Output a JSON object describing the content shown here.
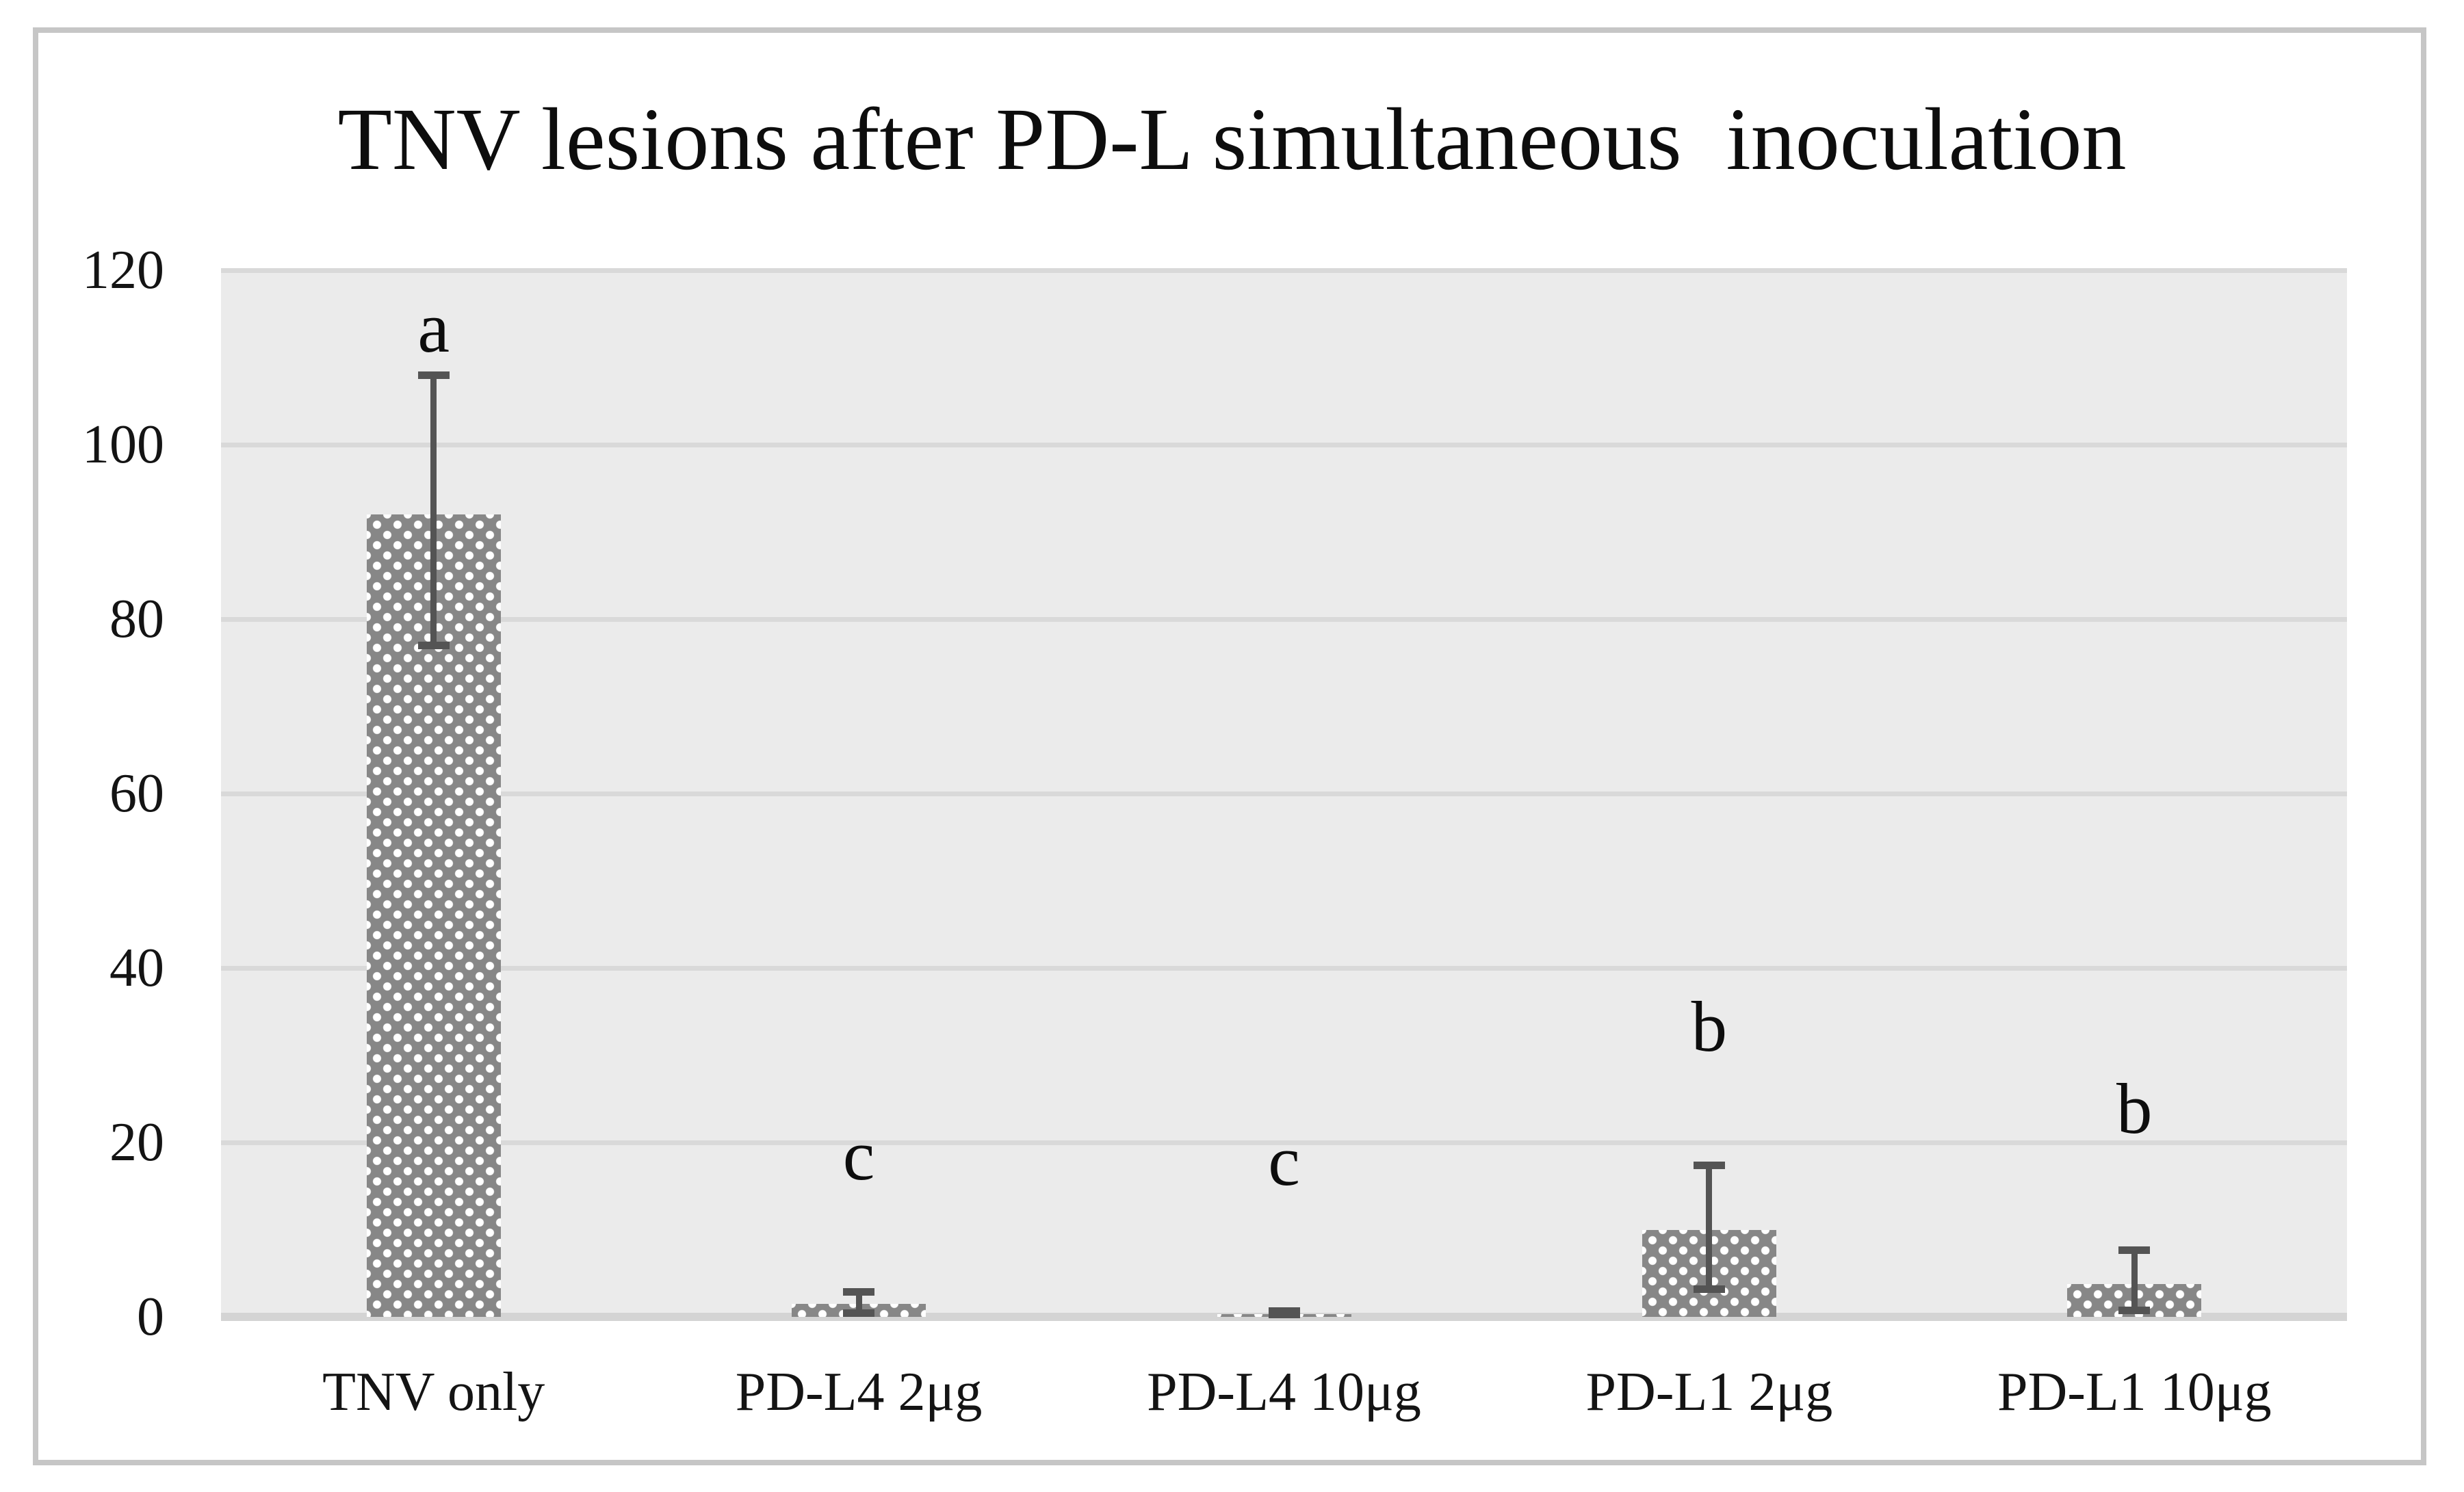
{
  "figure": {
    "title": "TNV lesions after PD-L simultaneous  inoculation"
  },
  "chart_data": {
    "type": "bar",
    "title": "TNV lesions after PD-L simultaneous inoculation",
    "categories": [
      "TNV only",
      "PD-L4 2μg",
      "PD-L4 10μg",
      "PD-L1 2μg",
      "PD-L1 10μg"
    ],
    "values": [
      92,
      1.5,
      0.3,
      10,
      3.8
    ],
    "error_high": [
      108,
      2.9,
      0.7,
      17.4,
      7.7
    ],
    "error_low": [
      77,
      0.5,
      0.3,
      3.2,
      0.8
    ],
    "sig_letters": [
      "a",
      "c",
      "c",
      "b",
      "b"
    ],
    "sig_letter_y": [
      113.5,
      18.6,
      18.0,
      33.3,
      23.9
    ],
    "xlabel": "",
    "ylabel": "",
    "ylim": [
      0,
      120
    ],
    "yticks": [
      0,
      20,
      40,
      60,
      80,
      100,
      120
    ],
    "grid": true,
    "legend": "none",
    "bar_fill": "white-dot-pattern-on-gray",
    "colors": {
      "bar_base": "#878787",
      "bar_dot": "#ffffff",
      "plot_bg": "#ebebeb",
      "gridline": "#d9d9d9",
      "axis_line": "#d4d4d4",
      "error_bar": "#545454",
      "text": "#141414",
      "frame_border": "#c6c6c6",
      "background": "#ffffff"
    }
  }
}
